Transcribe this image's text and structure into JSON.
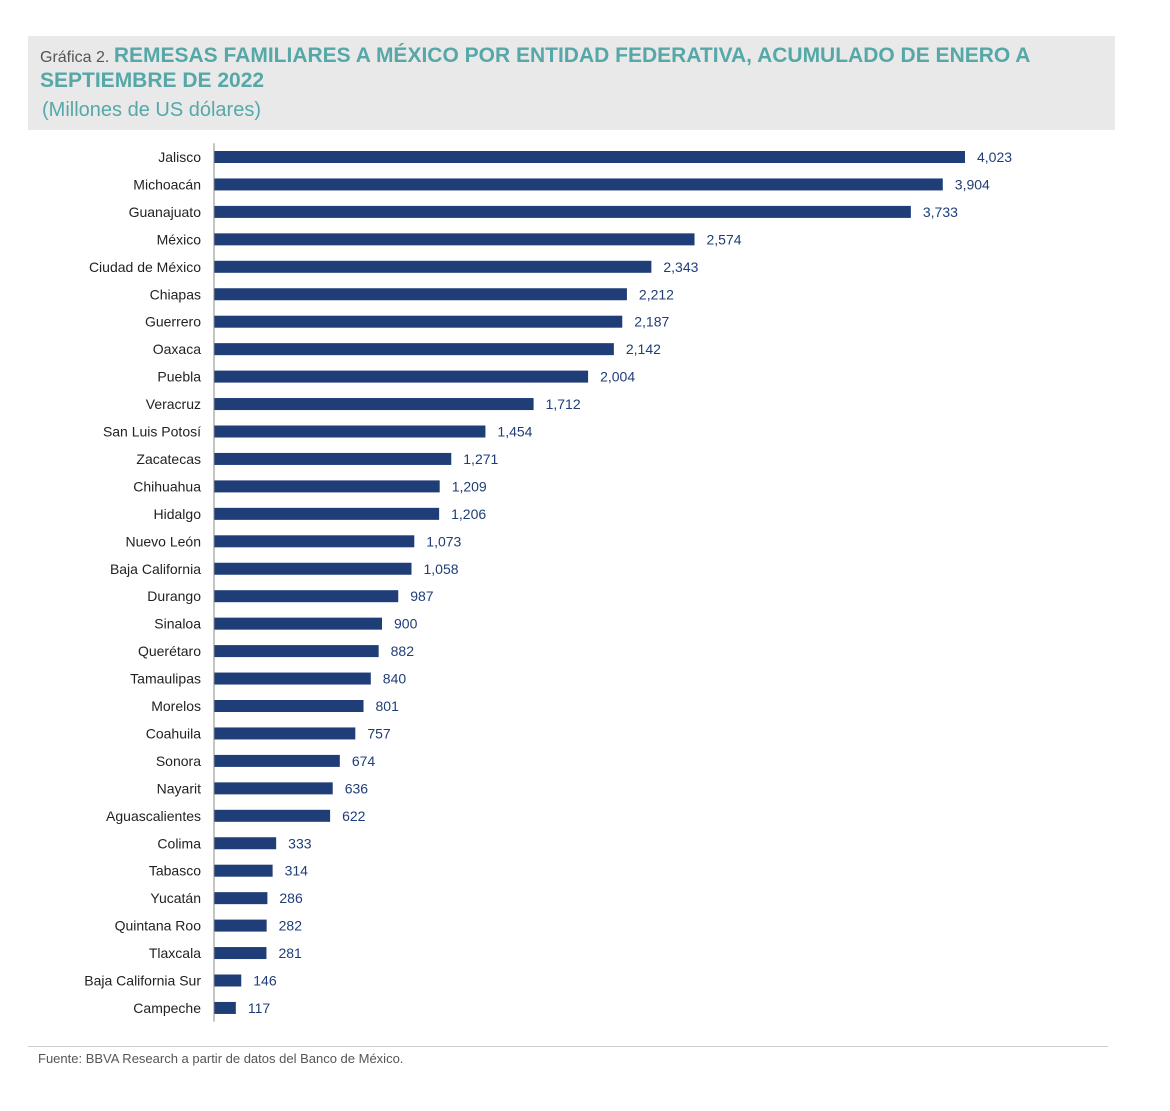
{
  "header": {
    "prefix": "Gráfica 2.",
    "title_line1": "REMESAS FAMILIARES A MÉXICO POR ENTIDAD FEDERATIVA, ACUMULADO DE ENERO A",
    "title_line2": "SEPTIEMBRE DE 2022",
    "subtitle": "(Millones de US dólares)"
  },
  "footer": {
    "source": "Fuente: BBVA Research a partir de datos del Banco de México."
  },
  "colors": {
    "bar": "#1f3d77",
    "title": "#56a8a8",
    "header_bg": "#e9e9e9"
  },
  "chart_data": {
    "type": "bar",
    "orientation": "horizontal",
    "title": "REMESAS FAMILIARES A MÉXICO POR ENTIDAD FEDERATIVA, ACUMULADO DE ENERO A SEPTIEMBRE DE 2022",
    "subtitle": "(Millones de US dólares)",
    "xlabel": "",
    "ylabel": "",
    "xlim": [
      0,
      4023
    ],
    "grid": false,
    "legend": "none",
    "categories": [
      "Jalisco",
      "Michoacán",
      "Guanajuato",
      "México",
      "Ciudad de México",
      "Chiapas",
      "Guerrero",
      "Oaxaca",
      "Puebla",
      "Veracruz",
      "San Luis Potosí",
      "Zacatecas",
      "Chihuahua",
      "Hidalgo",
      "Nuevo León",
      "Baja California",
      "Durango",
      "Sinaloa",
      "Querétaro",
      "Tamaulipas",
      "Morelos",
      "Coahuila",
      "Sonora",
      "Nayarit",
      "Aguascalientes",
      "Colima",
      "Tabasco",
      "Yucatán",
      "Quintana Roo",
      "Tlaxcala",
      "Baja California Sur",
      "Campeche"
    ],
    "values": [
      4023,
      3904,
      3733,
      2574,
      2343,
      2212,
      2187,
      2142,
      2004,
      1712,
      1454,
      1271,
      1209,
      1206,
      1073,
      1058,
      987,
      900,
      882,
      840,
      801,
      757,
      674,
      636,
      622,
      333,
      314,
      286,
      282,
      281,
      146,
      117
    ],
    "value_labels": [
      "4,023",
      "3,904",
      "3,733",
      "2,574",
      "2,343",
      "2,212",
      "2,187",
      "2,142",
      "2,004",
      "1,712",
      "1,454",
      "1,271",
      "1,209",
      "1,206",
      "1,073",
      "1,058",
      "987",
      "900",
      "882",
      "840",
      "801",
      "757",
      "674",
      "636",
      "622",
      "333",
      "314",
      "286",
      "282",
      "281",
      "146",
      "117"
    ]
  }
}
